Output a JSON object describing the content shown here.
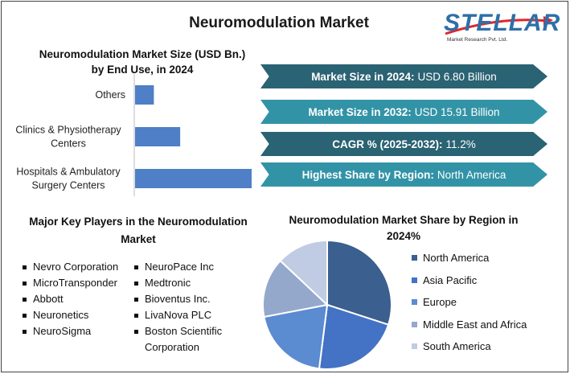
{
  "page": {
    "title": "Neuromodulation Market"
  },
  "logo": {
    "name": "STELLAR",
    "tagline": "Market Research Pvt. Ltd.",
    "color": "#2e6fa8"
  },
  "stats": [
    {
      "label": "Market Size in 2024:",
      "value": "USD 6.80 Billion",
      "color": "#2a6373"
    },
    {
      "label": "Market Size in 2032:",
      "value": "USD 15.91 Billion",
      "color": "#3293a6"
    },
    {
      "label": "CAGR % (2025-2032):",
      "value": "11.2%",
      "color": "#2a6373"
    },
    {
      "label": "Highest Share by Region:",
      "value": "North America",
      "color": "#3293a6"
    }
  ],
  "key_players": {
    "title": "Major Key Players in the Neuromodulation Market",
    "column1": [
      "Nevro Corporation",
      "MicroTransponder",
      "Abbott",
      "Neuronetics",
      "NeuroSigma"
    ],
    "column2": [
      "NeuroPace Inc",
      "Medtronic",
      "Bioventus Inc.",
      "LivaNova PLC",
      "Boston Scientific",
      "Corporation"
    ]
  },
  "chart_data": [
    {
      "type": "bar",
      "orientation": "horizontal",
      "title": "Neuromodulation Market Size (USD Bn.) by End Use, in 2024",
      "categories": [
        "Others",
        "Clinics & Physiotherapy Centers",
        "Hospitals & Ambulatory Surgery Centers"
      ],
      "category_lines": [
        [
          "Others"
        ],
        [
          "Clinics & Physiotherapy",
          "Centers"
        ],
        [
          "Hospitals & Ambulatory",
          "Surgery Centers"
        ]
      ],
      "values": [
        0.5,
        1.2,
        3.1
      ],
      "xlim": [
        0,
        3.1
      ],
      "bar_color": "#4f7fc6",
      "grid": false
    },
    {
      "type": "pie",
      "title": "Neuromodulation Market Share by Region in 2024%",
      "labels": [
        "North America",
        "Asia Pacific",
        "Europe",
        "Middle East and Africa",
        "South America"
      ],
      "values": [
        30,
        22,
        20,
        15,
        13
      ],
      "colors": [
        "#3b5f8e",
        "#4472c4",
        "#5b8bd0",
        "#94a8cc",
        "#c0cbe4"
      ],
      "legend": "right"
    }
  ]
}
